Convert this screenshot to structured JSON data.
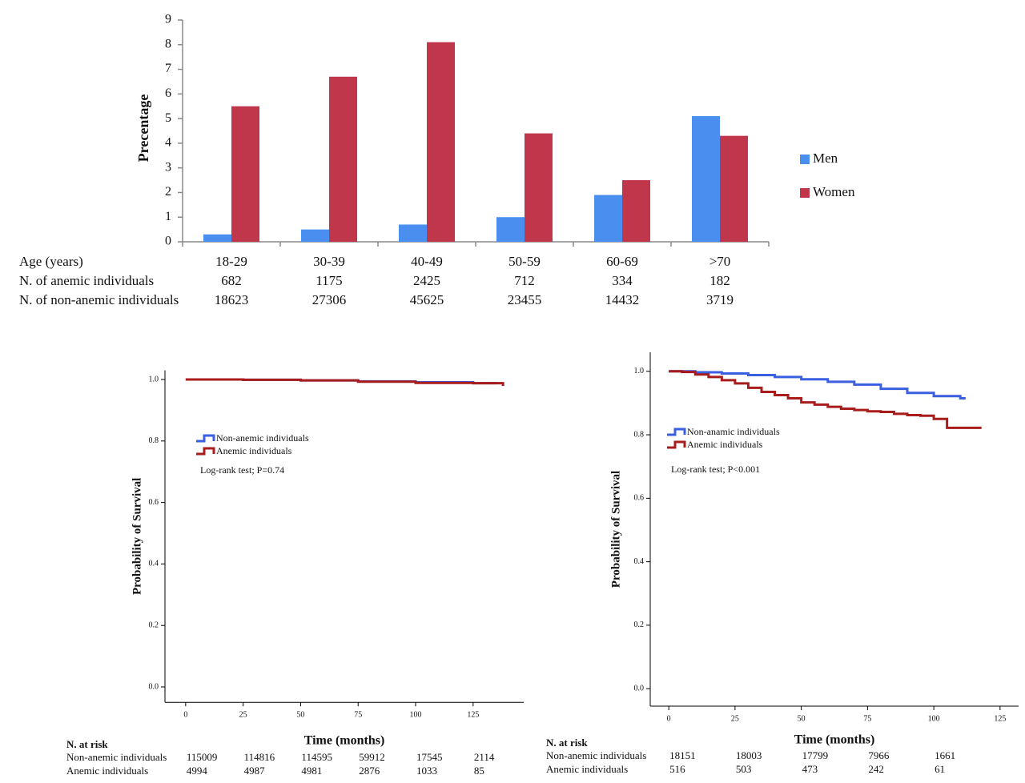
{
  "chart_data": [
    {
      "type": "bar",
      "y_label": "Precentage",
      "x_label": "Age (years)",
      "categories": [
        "18-29",
        "30-39",
        "40-49",
        "50-59",
        "60-69",
        ">70"
      ],
      "series": [
        {
          "name": "Men",
          "color": "#4a8ff0",
          "values": [
            0.3,
            0.5,
            0.7,
            1.0,
            1.9,
            5.1
          ]
        },
        {
          "name": "Women",
          "color": "#c0364a",
          "values": [
            5.5,
            6.7,
            8.1,
            4.4,
            2.5,
            4.3
          ]
        }
      ],
      "ylim": [
        0,
        9
      ],
      "yticks": [
        0,
        1,
        2,
        3,
        4,
        5,
        6,
        7,
        8,
        9
      ],
      "grid": false,
      "legend": "right",
      "table": [
        {
          "name": "N. of anemic individuals",
          "values": [
            682,
            1175,
            2425,
            712,
            334,
            182
          ]
        },
        {
          "name": "N. of non-anemic individuals",
          "values": [
            18623,
            27306,
            45625,
            23455,
            14432,
            3719
          ]
        }
      ]
    },
    {
      "type": "step",
      "y_label": "Probability of Survival",
      "x_label": "Time (months)",
      "annotation": "Log-rank test; P=0.74",
      "series": [
        {
          "name": "Non-anemic individuals",
          "color": "#3a5fe0",
          "x": [
            0,
            25,
            50,
            75,
            100,
            125,
            135
          ],
          "values": [
            1.0,
            0.999,
            0.997,
            0.994,
            0.991,
            0.988,
            0.985
          ]
        },
        {
          "name": "Anemic individuals",
          "color": "#a81c1c",
          "x": [
            0,
            25,
            50,
            75,
            100,
            125,
            138
          ],
          "values": [
            1.0,
            0.999,
            0.997,
            0.993,
            0.989,
            0.988,
            0.979
          ]
        }
      ],
      "xlim": [
        -9,
        147
      ],
      "xticks": [
        0,
        25,
        50,
        75,
        100,
        125
      ],
      "ylim": [
        -0.05,
        1.03
      ],
      "yticks": [
        {
          "value": 0,
          "label": "0.0"
        },
        {
          "value": 0.2,
          "label": "0.2"
        },
        {
          "value": 0.4,
          "label": "0.4"
        },
        {
          "value": 0.6,
          "label": "0.6"
        },
        {
          "value": 0.8,
          "label": "0.8"
        },
        {
          "value": 1,
          "label": "1.0"
        }
      ],
      "risk_table": {
        "title": "N. at risk",
        "rows": [
          {
            "name": "Non-anemic individuals",
            "values": [
              115009,
              114816,
              114595,
              59912,
              17545,
              2114
            ]
          },
          {
            "name": "Anemic individuals",
            "values": [
              4994,
              4987,
              4981,
              2876,
              1033,
              85
            ]
          }
        ]
      }
    },
    {
      "type": "step",
      "y_label": "Probability of Survival",
      "x_label": "Time (months)",
      "annotation": "Log-rank test; P<0.001",
      "series": [
        {
          "name": "Non-anamic individuals",
          "color": "#3a5fe0",
          "x": [
            0,
            10,
            20,
            30,
            40,
            50,
            60,
            70,
            80,
            90,
            100,
            110,
            112
          ],
          "values": [
            1.0,
            0.997,
            0.993,
            0.988,
            0.982,
            0.975,
            0.967,
            0.958,
            0.945,
            0.932,
            0.922,
            0.915,
            0.915
          ]
        },
        {
          "name": "Anemic individuals",
          "color": "#a81c1c",
          "x": [
            0,
            5,
            10,
            15,
            20,
            25,
            30,
            35,
            40,
            45,
            50,
            55,
            60,
            65,
            70,
            75,
            80,
            85,
            90,
            95,
            100,
            105,
            110,
            118
          ],
          "values": [
            1.0,
            0.998,
            0.99,
            0.982,
            0.972,
            0.962,
            0.948,
            0.935,
            0.925,
            0.915,
            0.902,
            0.895,
            0.888,
            0.882,
            0.878,
            0.874,
            0.872,
            0.866,
            0.862,
            0.86,
            0.85,
            0.822,
            0.822,
            0.822
          ]
        }
      ],
      "xlim": [
        -7,
        132
      ],
      "xticks": [
        0,
        25,
        50,
        75,
        100,
        125
      ],
      "ylim": [
        -0.055,
        1.06
      ],
      "yticks": [
        {
          "value": 0,
          "label": "0.0"
        },
        {
          "value": 0.2,
          "label": "0.2"
        },
        {
          "value": 0.4,
          "label": "0.4"
        },
        {
          "value": 0.6,
          "label": "0.6"
        },
        {
          "value": 0.8,
          "label": "0.8"
        },
        {
          "value": 1,
          "label": "1.0"
        }
      ],
      "risk_table": {
        "title": "N. at risk",
        "rows": [
          {
            "name": "Non-anemic individuals",
            "values": [
              18151,
              18003,
              17799,
              7966,
              1661
            ]
          },
          {
            "name": "Anemic individuals",
            "values": [
              516,
              503,
              473,
              242,
              61
            ]
          }
        ]
      }
    }
  ]
}
